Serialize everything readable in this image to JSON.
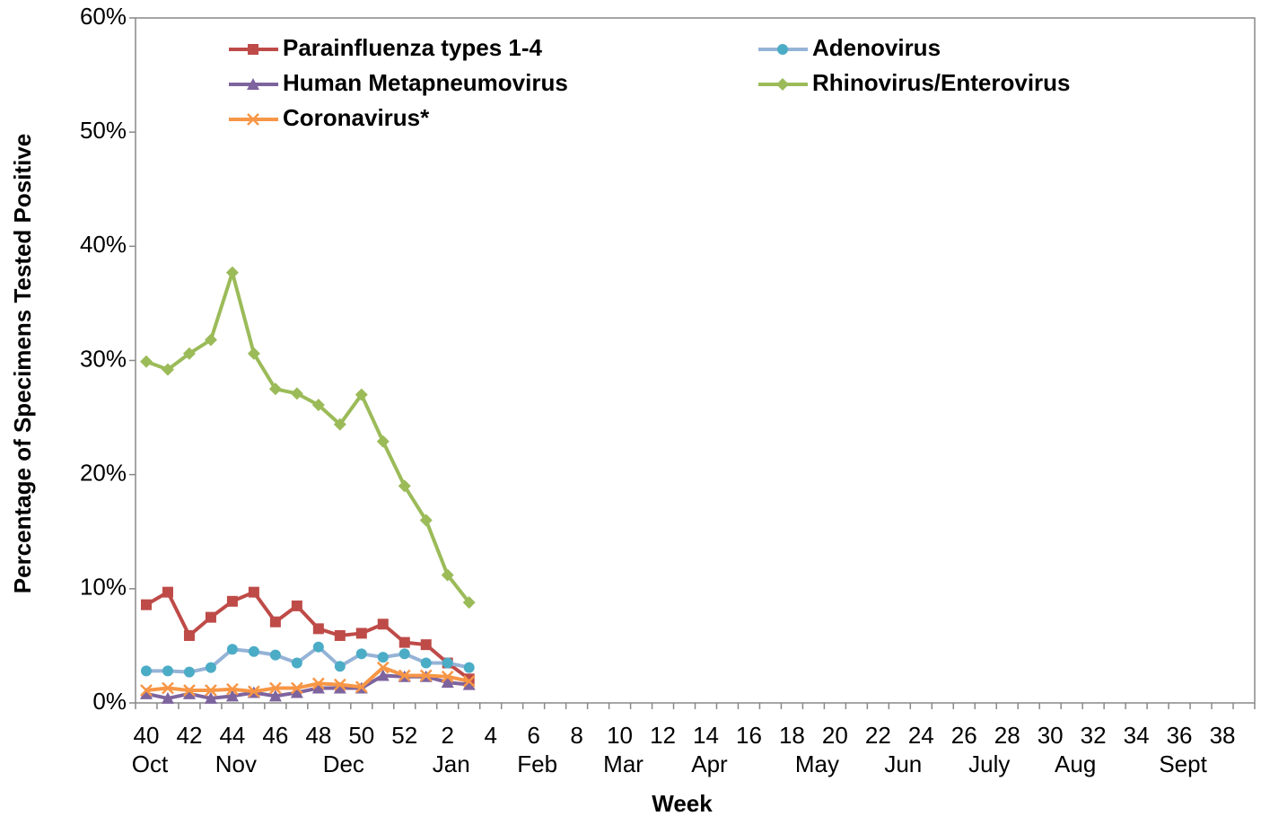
{
  "chart_data": {
    "type": "line",
    "y_label": "Percentage of Specimens Tested Positive",
    "x_label": "Week",
    "categories": [
      "40",
      null,
      "42",
      null,
      "44",
      null,
      "46",
      null,
      "48",
      null,
      "50",
      null,
      "52",
      null,
      "2",
      null,
      "4",
      null,
      "6",
      null,
      "8",
      null,
      "10",
      null,
      "12",
      null,
      "14",
      null,
      "16",
      null,
      "18",
      null,
      "20",
      null,
      "22",
      null,
      "24",
      null,
      "26",
      null,
      "28",
      null,
      "30",
      null,
      "32",
      null,
      "34",
      null,
      "36",
      null,
      "38",
      null
    ],
    "month_labels": [
      "Oct",
      null,
      null,
      null,
      "Nov",
      null,
      null,
      null,
      null,
      "Dec",
      null,
      null,
      null,
      null,
      "Jan",
      null,
      null,
      null,
      "Feb",
      null,
      null,
      null,
      "Mar",
      null,
      null,
      null,
      "Apr",
      null,
      null,
      null,
      null,
      "May",
      null,
      null,
      null,
      "Jun",
      null,
      null,
      null,
      "July",
      null,
      null,
      null,
      "Aug",
      null,
      null,
      null,
      null,
      "Sept",
      null,
      null,
      null
    ],
    "ylim": [
      0,
      60
    ],
    "yticks": [
      {
        "value": 0,
        "label": "0%"
      },
      {
        "value": 10,
        "label": "10%"
      },
      {
        "value": 20,
        "label": "20%"
      },
      {
        "value": 30,
        "label": "30%"
      },
      {
        "value": 40,
        "label": "40%"
      },
      {
        "value": 50,
        "label": "50%"
      },
      {
        "value": 60,
        "label": "60%"
      }
    ],
    "grid": false,
    "legend": "top-left",
    "series": [
      {
        "name": "Parainfluenza types 1-4",
        "color": "#be4b48",
        "marker_color": "#be4b48",
        "marker": "square",
        "values": [
          8.6,
          9.7,
          5.9,
          7.5,
          8.9,
          9.7,
          7.1,
          8.5,
          6.5,
          5.9,
          6.1,
          6.9,
          5.3,
          5.1,
          3.5,
          2.1,
          null,
          null,
          null,
          null,
          null,
          null,
          null,
          null,
          null,
          null,
          null,
          null,
          null,
          null,
          null,
          null,
          null,
          null,
          null,
          null,
          null,
          null,
          null,
          null,
          null,
          null,
          null,
          null,
          null,
          null,
          null,
          null,
          null,
          null,
          null,
          null
        ]
      },
      {
        "name": "Adenovirus",
        "color": "#95b3d7",
        "marker_color": "#4bacc6",
        "marker": "circle",
        "values": [
          2.8,
          2.8,
          2.7,
          3.1,
          4.7,
          4.5,
          4.2,
          3.5,
          4.9,
          3.2,
          4.3,
          4.0,
          4.3,
          3.5,
          3.5,
          3.1,
          null,
          null,
          null,
          null,
          null,
          null,
          null,
          null,
          null,
          null,
          null,
          null,
          null,
          null,
          null,
          null,
          null,
          null,
          null,
          null,
          null,
          null,
          null,
          null,
          null,
          null,
          null,
          null,
          null,
          null,
          null,
          null,
          null,
          null,
          null,
          null
        ]
      },
      {
        "name": "Human Metapneumovirus",
        "color": "#7e649e",
        "marker_color": "#7e649e",
        "marker": "triangle",
        "values": [
          0.8,
          0.4,
          0.8,
          0.4,
          0.6,
          0.9,
          0.6,
          0.9,
          1.3,
          1.3,
          1.3,
          2.4,
          2.3,
          2.3,
          1.8,
          1.6,
          null,
          null,
          null,
          null,
          null,
          null,
          null,
          null,
          null,
          null,
          null,
          null,
          null,
          null,
          null,
          null,
          null,
          null,
          null,
          null,
          null,
          null,
          null,
          null,
          null,
          null,
          null,
          null,
          null,
          null,
          null,
          null,
          null,
          null,
          null,
          null
        ]
      },
      {
        "name": "Rhinovirus/Enterovirus",
        "color": "#9bbb59",
        "marker_color": "#9bbb59",
        "marker": "diamond",
        "values": [
          29.9,
          29.2,
          30.6,
          31.8,
          37.7,
          30.6,
          27.5,
          27.1,
          26.1,
          24.4,
          27.0,
          22.9,
          19.0,
          16.0,
          11.2,
          8.8,
          null,
          null,
          null,
          null,
          null,
          null,
          null,
          null,
          null,
          null,
          null,
          null,
          null,
          null,
          null,
          null,
          null,
          null,
          null,
          null,
          null,
          null,
          null,
          null,
          null,
          null,
          null,
          null,
          null,
          null,
          null,
          null,
          null,
          null,
          null,
          null
        ]
      },
      {
        "name": "Coronavirus*",
        "color": "#f79646",
        "marker_color": "#f79646",
        "marker": "x",
        "values": [
          1.1,
          1.3,
          1.1,
          1.1,
          1.2,
          1.0,
          1.3,
          1.3,
          1.7,
          1.6,
          1.4,
          3.1,
          2.4,
          2.4,
          2.3,
          1.9,
          null,
          null,
          null,
          null,
          null,
          null,
          null,
          null,
          null,
          null,
          null,
          null,
          null,
          null,
          null,
          null,
          null,
          null,
          null,
          null,
          null,
          null,
          null,
          null,
          null,
          null,
          null,
          null,
          null,
          null,
          null,
          null,
          null,
          null,
          null,
          null
        ]
      }
    ]
  }
}
